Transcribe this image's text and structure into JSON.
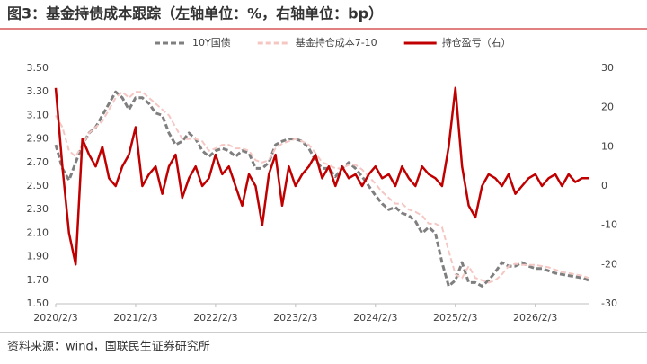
{
  "chart_data": {
    "type": "line",
    "title": "图3：基金持债成本跟踪（左轴单位：%，右轴单位：bp）",
    "source": "资料来源：wind，国联民生证券研究所",
    "categories": [
      "2020/2/3",
      null,
      null,
      null,
      null,
      null,
      null,
      null,
      null,
      null,
      null,
      null,
      "2021/2/3",
      null,
      null,
      null,
      null,
      null,
      null,
      null,
      null,
      null,
      null,
      null,
      "2022/2/3",
      null,
      null,
      null,
      null,
      null,
      null,
      null,
      null,
      null,
      null,
      null,
      "2023/2/3",
      null,
      null,
      null,
      null,
      null,
      null,
      null,
      null,
      null,
      null,
      null,
      "2024/2/3",
      null,
      null,
      null,
      null,
      null,
      null,
      null,
      null,
      null,
      null,
      null,
      "2025/2/3",
      null,
      null,
      null,
      null,
      null,
      null,
      null,
      null,
      null,
      null,
      null,
      "2026/2/3",
      null,
      null,
      null,
      null,
      null,
      null,
      null,
      null
    ],
    "ylim": [
      1.5,
      3.5
    ],
    "yticks": [
      {
        "value": 1.5,
        "label": "1.50"
      },
      {
        "value": 1.7,
        "label": "1.70"
      },
      {
        "value": 1.9,
        "label": "1.90"
      },
      {
        "value": 2.1,
        "label": "2.10"
      },
      {
        "value": 2.3,
        "label": "2.30"
      },
      {
        "value": 2.5,
        "label": "2.50"
      },
      {
        "value": 2.7,
        "label": "2.70"
      },
      {
        "value": 2.9,
        "label": "2.90"
      },
      {
        "value": 3.1,
        "label": "3.10"
      },
      {
        "value": 3.3,
        "label": "3.30"
      },
      {
        "value": 3.5,
        "label": "3.50"
      }
    ],
    "y2lim": [
      -30,
      30
    ],
    "y2ticks": [
      -30,
      -20,
      -10,
      0,
      10,
      20,
      30
    ],
    "series": [
      {
        "name": "10Y国债",
        "color": "#7f7f7f",
        "dash": "dashed",
        "values": [
          2.85,
          2.65,
          2.55,
          2.7,
          2.85,
          2.95,
          3.0,
          3.1,
          3.2,
          3.3,
          3.25,
          3.15,
          3.25,
          3.25,
          3.2,
          3.12,
          3.1,
          2.95,
          2.85,
          2.88,
          2.95,
          2.9,
          2.8,
          2.75,
          2.8,
          2.82,
          2.8,
          2.75,
          2.8,
          2.78,
          2.65,
          2.65,
          2.7,
          2.85,
          2.88,
          2.9,
          2.9,
          2.88,
          2.82,
          2.72,
          2.65,
          2.65,
          2.58,
          2.65,
          2.7,
          2.65,
          2.58,
          2.5,
          2.42,
          2.35,
          2.3,
          2.32,
          2.27,
          2.25,
          2.2,
          2.1,
          2.15,
          2.1,
          1.85,
          1.65,
          1.7,
          1.85,
          1.68,
          1.68,
          1.65,
          1.7,
          1.77,
          1.85,
          1.82,
          1.82,
          1.85,
          1.82,
          1.8,
          1.8,
          1.78,
          1.76,
          1.75,
          1.74,
          1.73,
          1.72,
          1.7
        ]
      },
      {
        "name": "基金持仓成本7-10",
        "color": "#f4c7c3",
        "dash": "dashed",
        "values": [
          3.1,
          3.0,
          2.8,
          2.75,
          2.85,
          2.95,
          3.0,
          3.05,
          3.15,
          3.25,
          3.3,
          3.25,
          3.3,
          3.3,
          3.25,
          3.2,
          3.15,
          3.1,
          3.0,
          2.9,
          2.9,
          2.9,
          2.88,
          2.8,
          2.82,
          2.85,
          2.85,
          2.82,
          2.82,
          2.8,
          2.72,
          2.7,
          2.72,
          2.82,
          2.86,
          2.88,
          2.9,
          2.88,
          2.85,
          2.78,
          2.7,
          2.68,
          2.65,
          2.65,
          2.68,
          2.68,
          2.64,
          2.58,
          2.52,
          2.45,
          2.4,
          2.35,
          2.35,
          2.3,
          2.28,
          2.25,
          2.18,
          2.18,
          2.15,
          1.95,
          1.75,
          1.72,
          1.82,
          1.72,
          1.7,
          1.68,
          1.7,
          1.75,
          1.82,
          1.84,
          1.83,
          1.83,
          1.83,
          1.82,
          1.81,
          1.79,
          1.77,
          1.76,
          1.75,
          1.74,
          1.72
        ]
      },
      {
        "name": "持仓盈亏（右）",
        "color": "#c00000",
        "dash": "solid",
        "axis": "y2",
        "values": [
          25,
          5,
          -12,
          -20,
          12,
          8,
          5,
          10,
          2,
          0,
          5,
          8,
          15,
          0,
          3,
          5,
          -2,
          5,
          8,
          -3,
          2,
          5,
          0,
          2,
          8,
          3,
          5,
          0,
          -5,
          3,
          0,
          -10,
          3,
          8,
          -5,
          5,
          0,
          3,
          5,
          8,
          2,
          5,
          0,
          5,
          2,
          3,
          0,
          3,
          5,
          2,
          3,
          0,
          5,
          2,
          0,
          5,
          3,
          2,
          0,
          10,
          25,
          5,
          -5,
          -8,
          0,
          3,
          2,
          0,
          3,
          -2,
          0,
          2,
          3,
          0,
          2,
          3,
          0,
          3,
          1,
          2,
          2
        ]
      }
    ]
  }
}
